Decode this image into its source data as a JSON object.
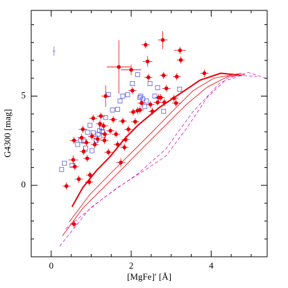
{
  "chart_data": {
    "type": "scatter",
    "xlabel": "[MgFe]′ [Å]",
    "ylabel": "G4300 [mag]",
    "xlim": [
      -0.5,
      5.4
    ],
    "ylim": [
      -4,
      9.8
    ],
    "xticks": [
      0,
      2,
      4
    ],
    "yticks": [
      0,
      5
    ],
    "xminorticks": [
      -0.5,
      0.5,
      1,
      1.5,
      2.5,
      3,
      3.5,
      4.5,
      5
    ],
    "yminorticks": [
      -4,
      -3,
      -2,
      -1,
      1,
      2,
      3,
      4,
      6,
      7,
      8,
      9
    ],
    "series": [
      {
        "style": "line",
        "color": "#e8000b",
        "width": 2,
        "x": [
          0.52,
          0.79,
          1.14,
          1.48,
          1.83,
          2.17,
          2.69,
          3.21,
          3.72,
          4.24,
          4.76
        ],
        "values": [
          -1.2,
          -0.12,
          0.85,
          1.63,
          2.6,
          3.37,
          4.34,
          5.12,
          5.89,
          6.28,
          6.16
        ]
      },
      {
        "style": "line",
        "color": "#e8000b",
        "width": 0.8,
        "x": [
          0.28,
          0.79,
          1.31,
          1.83,
          2.34,
          2.86,
          3.38,
          3.9,
          4.41,
          4.84
        ],
        "values": [
          -2.83,
          -1.28,
          -0.12,
          1.05,
          2.21,
          3.37,
          4.53,
          5.5,
          6.09,
          6.2
        ]
      },
      {
        "style": "line",
        "color": "#e8000b",
        "width": 0.8,
        "x": [
          0.45,
          0.97,
          1.48,
          2.0,
          2.52,
          3.03,
          3.55,
          4.07,
          4.76
        ],
        "values": [
          -2.05,
          -0.5,
          0.66,
          1.82,
          2.98,
          4.15,
          5.31,
          6.01,
          6.28
        ]
      },
      {
        "style": "dashed",
        "color": "#d020c0",
        "width": 0.8,
        "x": [
          0.21,
          0.97,
          1.66,
          2.34,
          2.86,
          3.38,
          3.9,
          4.41,
          4.93,
          5.36
        ],
        "values": [
          -3.41,
          -1.28,
          -0.12,
          0.85,
          1.63,
          3.18,
          4.92,
          6.01,
          6.32,
          6.01
        ]
      },
      {
        "style": "dashed",
        "color": "#d020c0",
        "width": 0.8,
        "x": [
          0.36,
          1.31,
          2.17,
          2.86,
          3.55,
          4.24,
          4.76,
          5.14
        ],
        "values": [
          -2.44,
          -0.7,
          0.66,
          2.02,
          4.15,
          5.78,
          6.16,
          6.09
        ]
      },
      {
        "style": "open-square",
        "color": "#6a6ae0",
        "x": [
          0.26,
          0.33,
          0.52,
          0.66,
          0.74,
          0.81,
          0.86,
          0.91,
          0.97,
          1.02,
          1.05,
          1.12,
          1.17,
          1.21,
          1.26,
          1.28,
          1.31,
          1.36,
          1.43,
          1.53,
          1.66,
          1.72,
          1.79,
          1.91,
          2.03,
          2.16,
          2.22,
          2.24,
          2.29,
          2.34,
          2.38,
          2.47,
          2.59,
          2.66,
          2.81,
          3.21
        ],
        "values": [
          0.89,
          1.24,
          1.12,
          2.29,
          2.52,
          2.48,
          2.09,
          2.98,
          3.37,
          1.94,
          2.95,
          2.52,
          2.87,
          3.06,
          3.22,
          3.02,
          2.79,
          3.8,
          5.08,
          4.22,
          4.26,
          4.73,
          5.0,
          5.08,
          5.7,
          6.2,
          4.92,
          5.0,
          4.84,
          4.42,
          4.73,
          5.7,
          5.0,
          5.47,
          4.15,
          5.39
        ]
      },
      {
        "style": "errorbar",
        "color": "#6a6ae0",
        "x": [
          0.07
        ],
        "values": [
          7.52
        ],
        "yerr": [
          0.27
        ]
      },
      {
        "style": "filled-circle",
        "color": "#e8000b",
        "x": [
          0.38,
          0.57,
          0.55,
          0.57,
          0.59,
          0.69,
          0.76,
          0.79,
          0.81,
          0.88,
          0.9,
          0.95,
          0.97,
          1.02,
          1.05,
          1.09,
          1.16,
          1.22,
          1.24,
          1.31,
          1.33,
          1.34,
          1.36,
          1.43,
          1.48,
          1.55,
          1.62,
          1.66,
          1.69,
          1.74,
          1.79,
          1.83,
          1.86,
          1.93,
          2.0,
          2.03,
          2.05,
          2.1,
          2.16,
          2.22,
          2.26,
          2.36,
          2.41,
          2.43,
          2.48,
          2.53,
          2.66,
          2.69,
          2.74,
          2.79,
          2.81,
          2.83,
          2.88,
          3.07,
          3.12,
          3.14,
          3.22,
          3.24,
          3.83
        ],
        "values": [
          -0.04,
          -2.17,
          1.43,
          2.52,
          1.05,
          0.35,
          2.67,
          3.14,
          1.9,
          2.4,
          1.51,
          0.19,
          0.58,
          2.75,
          3.76,
          2.29,
          2.6,
          3.45,
          3.88,
          3.33,
          2.52,
          2.87,
          5.0,
          1.86,
          3.06,
          3.68,
          2.87,
          2.29,
          6.63,
          1.28,
          3.6,
          2.13,
          2.56,
          3.14,
          6.47,
          5.31,
          4.11,
          3.57,
          4.19,
          4.22,
          4.61,
          7.87,
          6.94,
          6.05,
          4.53,
          4.15,
          4.65,
          4.92,
          4.92,
          8.14,
          6.16,
          4.65,
          5.43,
          4.88,
          4.61,
          6.09,
          7.56,
          7.02,
          6.28
        ],
        "xerr": [
          0.1,
          0.1,
          0.12,
          0.1,
          0.1,
          0.1,
          0.1,
          0.1,
          0.1,
          0.1,
          0.1,
          0.1,
          0.1,
          0.1,
          0.1,
          0.1,
          0.1,
          0.1,
          0.1,
          0.12,
          0.1,
          0.1,
          0.1,
          0.1,
          0.1,
          0.1,
          0.1,
          0.1,
          0.3,
          0.12,
          0.1,
          0.1,
          0.1,
          0.1,
          0.25,
          0.1,
          0.1,
          0.1,
          0.1,
          0.1,
          0.1,
          0.1,
          0.12,
          0.1,
          0.1,
          0.1,
          0.1,
          0.1,
          0.1,
          0.12,
          0.1,
          0.1,
          0.1,
          0.1,
          0.1,
          0.1,
          0.15,
          0.1,
          0.1
        ],
        "yerr": [
          0.2,
          0.2,
          0.25,
          0.2,
          0.2,
          0.2,
          0.2,
          0.2,
          0.2,
          0.2,
          0.2,
          0.2,
          0.2,
          0.2,
          0.2,
          0.2,
          0.2,
          0.2,
          0.2,
          0.2,
          0.2,
          0.2,
          0.6,
          0.2,
          0.2,
          0.2,
          0.2,
          0.2,
          1.5,
          0.25,
          0.2,
          0.2,
          0.2,
          0.2,
          0.3,
          0.2,
          0.2,
          0.2,
          0.2,
          0.2,
          0.2,
          0.2,
          0.3,
          0.2,
          0.2,
          0.2,
          0.2,
          0.2,
          0.2,
          0.5,
          0.2,
          0.2,
          0.2,
          0.2,
          0.2,
          0.2,
          0.2,
          0.2,
          0.2
        ]
      }
    ]
  }
}
